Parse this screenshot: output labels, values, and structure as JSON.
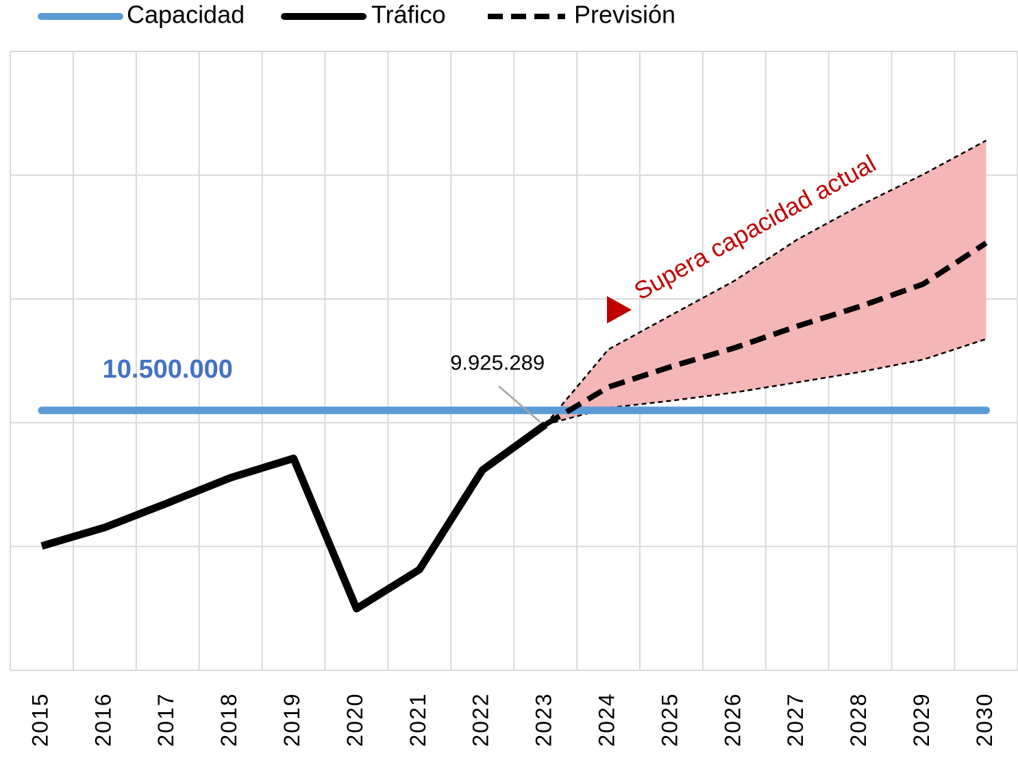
{
  "chart_data": {
    "type": "line",
    "categories": [
      "2015",
      "2016",
      "2017",
      "2018",
      "2019",
      "2020",
      "2021",
      "2022",
      "2023",
      "2024",
      "2025",
      "2026",
      "2027",
      "2028",
      "2029",
      "2030"
    ],
    "series": [
      {
        "name": "Capacidad",
        "color": "#5b9bd5",
        "style": "solid",
        "values": [
          10500000,
          10500000,
          10500000,
          10500000,
          10500000,
          10500000,
          10500000,
          10500000,
          10500000,
          10500000,
          10500000,
          10500000,
          10500000,
          10500000,
          10500000,
          10500000
        ],
        "value_labels": [
          null,
          null,
          "10.500.000",
          null,
          null,
          null,
          null,
          null,
          null,
          null,
          null,
          null,
          null,
          null,
          null,
          null
        ]
      },
      {
        "name": "Tráfico",
        "color": "#000000",
        "style": "solid",
        "values": [
          5020000,
          5770000,
          6760000,
          7780000,
          8560000,
          2490000,
          4070000,
          8090000,
          9925289,
          null,
          null,
          null,
          null,
          null,
          null,
          null
        ],
        "value_labels": [
          null,
          null,
          null,
          null,
          null,
          null,
          null,
          null,
          "9.925.289",
          null,
          null,
          null,
          null,
          null,
          null,
          null
        ]
      },
      {
        "name": "Previsión",
        "color": "#000000",
        "style": "dashed",
        "values": [
          null,
          null,
          null,
          null,
          null,
          null,
          null,
          null,
          9925289,
          11440000,
          12270000,
          13020000,
          13900000,
          14700000,
          15600000,
          17260000
        ]
      }
    ],
    "forecast_band": {
      "color": "#f4b6b6",
      "upper": [
        null,
        null,
        null,
        null,
        null,
        null,
        null,
        null,
        9925289,
        12960000,
        14350000,
        15730000,
        17400000,
        18780000,
        20030000,
        21400000
      ],
      "lower": [
        null,
        null,
        null,
        null,
        null,
        null,
        null,
        null,
        9925289,
        10600000,
        10890000,
        11220000,
        11630000,
        12050000,
        12550000,
        13380000
      ]
    },
    "annotation": "Supera capacidad actual",
    "annotation_color": "#c00000",
    "ylim": [
      0,
      25000000
    ],
    "yticks": [
      0,
      5000000,
      10000000,
      15000000,
      20000000,
      25000000
    ],
    "grid": true
  }
}
